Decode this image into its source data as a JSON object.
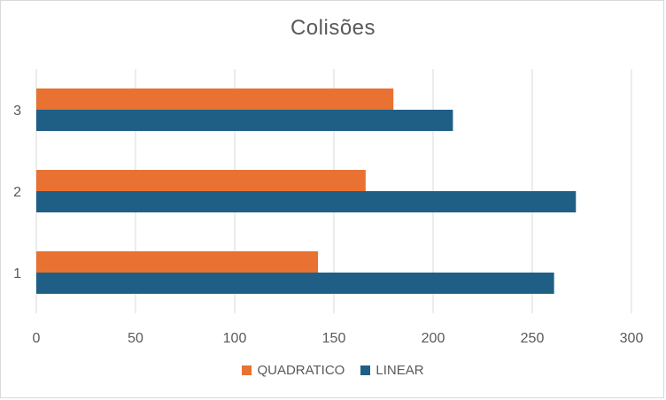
{
  "chart_data": {
    "type": "bar",
    "orientation": "horizontal",
    "title": "Colisões",
    "categories": [
      "1",
      "2",
      "3"
    ],
    "series": [
      {
        "name": "LINEAR",
        "color": "#1f5f85",
        "values": [
          261,
          272,
          210
        ]
      },
      {
        "name": "QUADRATICO",
        "color": "#e97132",
        "values": [
          142,
          166,
          180
        ]
      }
    ],
    "xlim": [
      0,
      300
    ],
    "xticks": [
      "0",
      "50",
      "100",
      "150",
      "200",
      "250",
      "300"
    ],
    "grid": true,
    "legend_position": "bottom",
    "legend_order": [
      "QUADRATICO",
      "LINEAR"
    ]
  }
}
